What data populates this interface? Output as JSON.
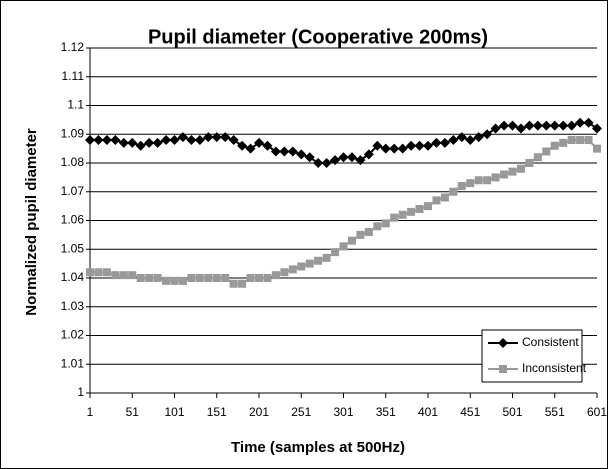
{
  "chart_data": {
    "type": "line",
    "title": "Pupil diameter (Cooperative 200ms)",
    "x_label": "Time (samples at 500Hz)",
    "y_label": "Normalized pupil diameter",
    "x": [
      1,
      11,
      21,
      31,
      41,
      51,
      61,
      71,
      81,
      91,
      101,
      111,
      121,
      131,
      141,
      151,
      161,
      171,
      181,
      191,
      201,
      211,
      221,
      231,
      241,
      251,
      261,
      271,
      281,
      291,
      301,
      311,
      321,
      331,
      341,
      351,
      361,
      371,
      381,
      391,
      401,
      411,
      421,
      431,
      441,
      451,
      461,
      471,
      481,
      491,
      501,
      511,
      521,
      531,
      541,
      551,
      561,
      571,
      581,
      591,
      601
    ],
    "series": [
      {
        "name": "Consistent",
        "color": "#000000",
        "marker": "diamond",
        "values": [
          1.088,
          1.088,
          1.088,
          1.088,
          1.087,
          1.087,
          1.086,
          1.087,
          1.087,
          1.088,
          1.088,
          1.089,
          1.088,
          1.088,
          1.089,
          1.089,
          1.089,
          1.088,
          1.086,
          1.085,
          1.087,
          1.086,
          1.084,
          1.084,
          1.084,
          1.083,
          1.082,
          1.08,
          1.08,
          1.081,
          1.082,
          1.082,
          1.081,
          1.083,
          1.086,
          1.085,
          1.085,
          1.085,
          1.086,
          1.086,
          1.086,
          1.087,
          1.087,
          1.088,
          1.089,
          1.088,
          1.089,
          1.09,
          1.092,
          1.093,
          1.093,
          1.092,
          1.093,
          1.093,
          1.093,
          1.093,
          1.093,
          1.093,
          1.094,
          1.094,
          1.092
        ]
      },
      {
        "name": "Inconsistent",
        "color": "#999999",
        "marker": "square",
        "values": [
          1.042,
          1.042,
          1.042,
          1.041,
          1.041,
          1.041,
          1.04,
          1.04,
          1.04,
          1.039,
          1.039,
          1.039,
          1.04,
          1.04,
          1.04,
          1.04,
          1.04,
          1.038,
          1.038,
          1.04,
          1.04,
          1.04,
          1.041,
          1.042,
          1.043,
          1.044,
          1.045,
          1.046,
          1.047,
          1.049,
          1.051,
          1.053,
          1.055,
          1.056,
          1.058,
          1.059,
          1.061,
          1.062,
          1.063,
          1.064,
          1.065,
          1.067,
          1.068,
          1.07,
          1.072,
          1.073,
          1.074,
          1.074,
          1.075,
          1.076,
          1.077,
          1.078,
          1.08,
          1.082,
          1.084,
          1.086,
          1.087,
          1.088,
          1.088,
          1.088,
          1.085
        ]
      }
    ],
    "xlim": [
      1,
      601
    ],
    "xticks": [
      1,
      51,
      101,
      151,
      201,
      251,
      301,
      351,
      401,
      451,
      501,
      551,
      601
    ],
    "ylim": [
      1,
      1.12
    ],
    "yticks": [
      1,
      1.01,
      1.02,
      1.03,
      1.04,
      1.05,
      1.06,
      1.07,
      1.08,
      1.09,
      1.1,
      1.11,
      1.12
    ],
    "grid": true,
    "legend": "lower-right"
  }
}
